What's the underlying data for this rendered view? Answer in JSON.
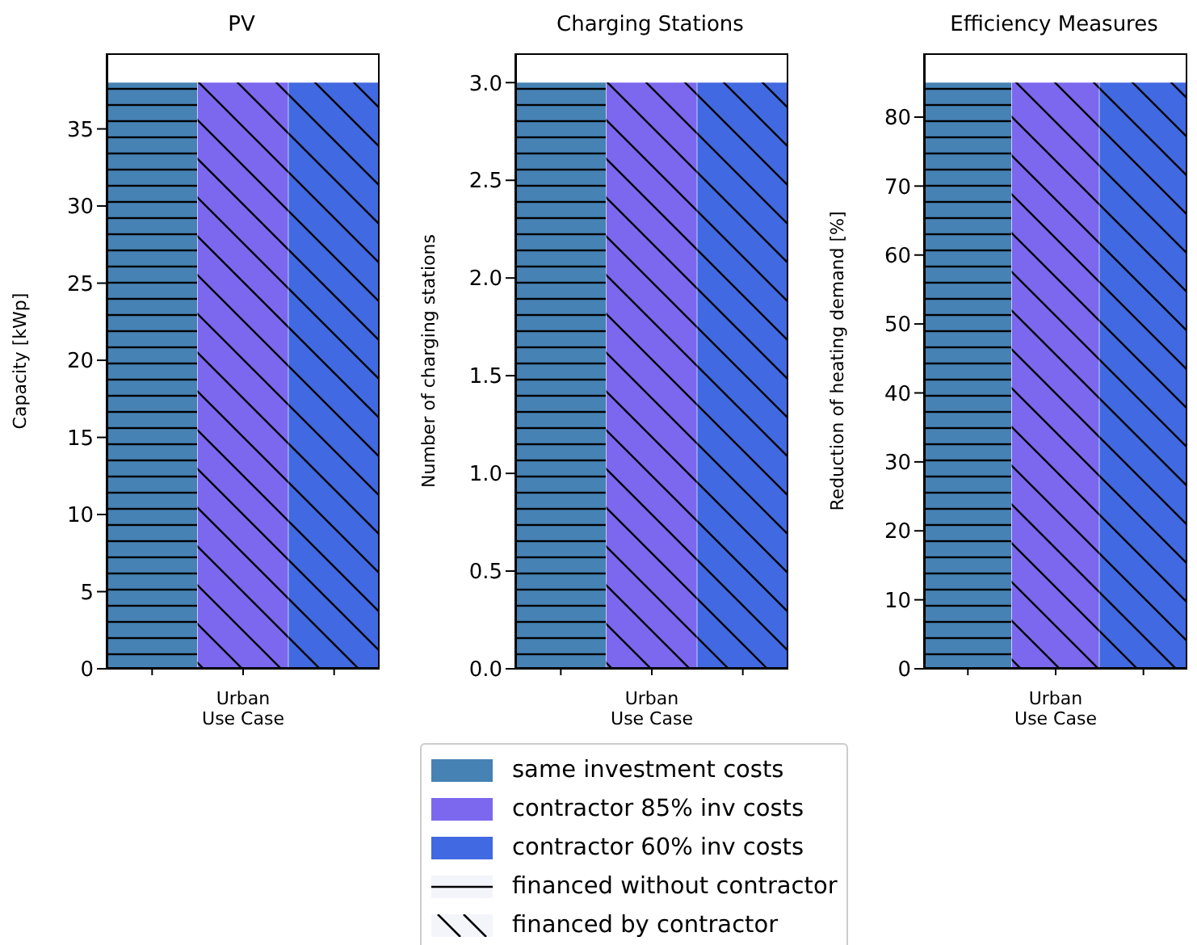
{
  "chart_data": [
    {
      "type": "bar",
      "title": "PV",
      "ylabel": "Capacity [kWp]",
      "stacked": true,
      "categories": [
        null,
        "Urban\nUse Case",
        null
      ],
      "ylim": [
        0,
        39.9
      ],
      "yticks": [
        0,
        5,
        10,
        15,
        20,
        25,
        30,
        35
      ],
      "series": [
        {
          "color": "#4682b4",
          "values": [
            38,
            null,
            null
          ]
        },
        {
          "color": "#7b68ee",
          "values": [
            null,
            38,
            null
          ]
        },
        {
          "color": "#4169e1",
          "values": [
            null,
            null,
            38
          ]
        }
      ]
    },
    {
      "type": "bar",
      "title": "Charging Stations",
      "ylabel": "Number of charging stations",
      "stacked": true,
      "categories": [
        null,
        "Urban\nUse Case",
        null
      ],
      "ylim": [
        0,
        3.15
      ],
      "yticks": [
        {
          "value": 0,
          "label": "0.0"
        },
        0.5,
        {
          "value": 1,
          "label": "1.0"
        },
        1.5,
        {
          "value": 2,
          "label": "2.0"
        },
        2.5,
        {
          "value": 3,
          "label": "3.0"
        }
      ],
      "legend": "bottom",
      "annotations": [
        "financed without contractor",
        "financed by contractor"
      ],
      "series": [
        {
          "name": "same investment costs",
          "color": "#4682b4",
          "values": [
            3,
            null,
            null
          ]
        },
        {
          "name": "contractor 85% inv costs",
          "color": "#7b68ee",
          "values": [
            null,
            3,
            null
          ]
        },
        {
          "name": "contractor 60% inv costs",
          "color": "#4169e1",
          "values": [
            null,
            null,
            3
          ]
        }
      ]
    },
    {
      "type": "bar",
      "title": "Efficiency Measures",
      "ylabel": "Reduction of heating demand [%]",
      "stacked": true,
      "categories": [
        null,
        "Urban\nUse Case",
        null
      ],
      "ylim": [
        0,
        89.25
      ],
      "yticks": [
        0,
        10,
        20,
        30,
        40,
        50,
        60,
        70,
        80
      ],
      "series": [
        {
          "color": "#4682b4",
          "values": [
            85,
            null,
            null
          ]
        },
        {
          "color": "#7b68ee",
          "values": [
            null,
            85,
            null
          ]
        },
        {
          "color": "#4169e1",
          "values": [
            null,
            null,
            85
          ]
        }
      ]
    }
  ]
}
